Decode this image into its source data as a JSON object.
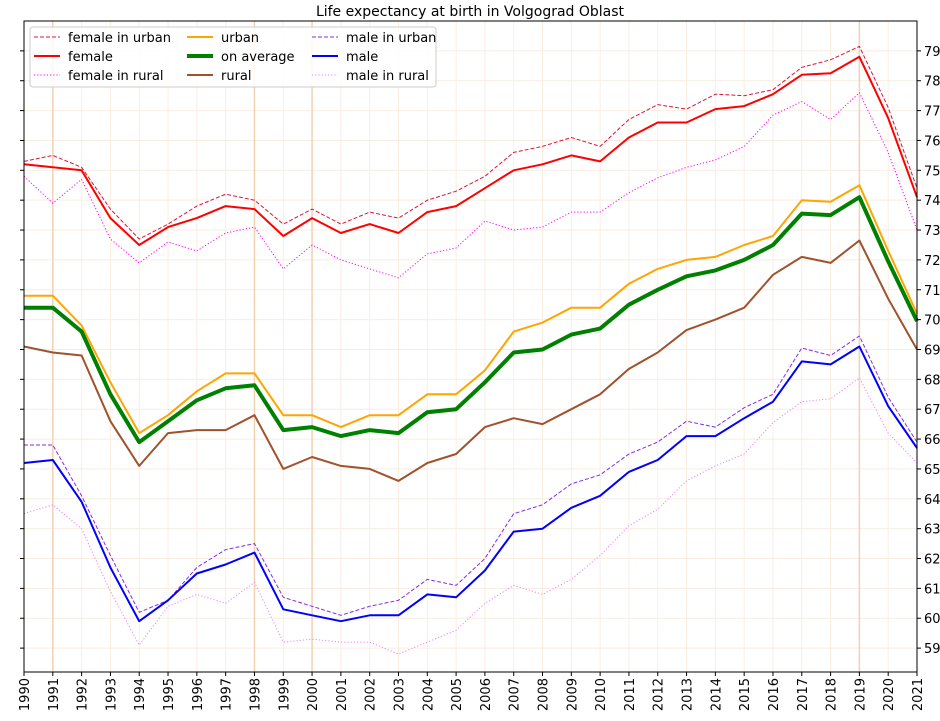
{
  "chart_data": {
    "type": "line",
    "title": "Life expectancy at birth in Volgograd Oblast",
    "xlabel": "",
    "ylabel": "",
    "xlim": [
      1990,
      2021
    ],
    "ylim": [
      58.2,
      80.0
    ],
    "grid": true,
    "legend_position": "top-left",
    "highlight_years": [
      1991,
      1998,
      2000,
      2019
    ],
    "x": [
      1990,
      1991,
      1992,
      1993,
      1994,
      1995,
      1996,
      1997,
      1998,
      1999,
      2000,
      2001,
      2002,
      2003,
      2004,
      2005,
      2006,
      2007,
      2008,
      2009,
      2010,
      2011,
      2012,
      2013,
      2014,
      2015,
      2016,
      2017,
      2018,
      2019,
      2020,
      2021
    ],
    "yticks": [
      59,
      60,
      61,
      62,
      63,
      64,
      65,
      66,
      67,
      68,
      69,
      70,
      71,
      72,
      73,
      74,
      75,
      76,
      77,
      78,
      79
    ],
    "series": [
      {
        "name": "female in urban",
        "color": "#dc143c",
        "style": "dashed",
        "width": 1,
        "values": [
          75.3,
          75.5,
          75.1,
          73.7,
          72.7,
          73.2,
          73.8,
          74.2,
          74.0,
          73.2,
          73.7,
          73.2,
          73.6,
          73.4,
          74.0,
          74.3,
          74.8,
          75.6,
          75.8,
          76.1,
          75.8,
          76.7,
          77.2,
          77.05,
          77.55,
          77.5,
          77.7,
          78.45,
          78.7,
          79.15,
          77.1,
          74.4
        ]
      },
      {
        "name": "female",
        "color": "#ff0000",
        "style": "solid",
        "width": 2,
        "values": [
          75.2,
          75.1,
          75.0,
          73.4,
          72.5,
          73.1,
          73.4,
          73.8,
          73.7,
          72.8,
          73.4,
          72.9,
          73.2,
          72.9,
          73.6,
          73.8,
          74.4,
          75.0,
          75.2,
          75.5,
          75.3,
          76.1,
          76.6,
          76.6,
          77.05,
          77.15,
          77.55,
          78.2,
          78.25,
          78.8,
          76.75,
          74.1
        ]
      },
      {
        "name": "female in rural",
        "color": "#ff00ff",
        "style": "dotted",
        "width": 1,
        "values": [
          74.8,
          73.9,
          74.7,
          72.7,
          71.9,
          72.6,
          72.3,
          72.9,
          73.1,
          71.7,
          72.5,
          72.0,
          71.7,
          71.4,
          72.2,
          72.4,
          73.3,
          73.0,
          73.1,
          73.6,
          73.6,
          74.25,
          74.75,
          75.1,
          75.35,
          75.8,
          76.85,
          77.3,
          76.7,
          77.6,
          75.6,
          73.0
        ]
      },
      {
        "name": "urban",
        "color": "#ffa500",
        "style": "solid",
        "width": 2,
        "values": [
          70.8,
          70.8,
          69.8,
          67.9,
          66.2,
          66.8,
          67.6,
          68.2,
          68.2,
          66.8,
          66.8,
          66.4,
          66.8,
          66.8,
          67.5,
          67.5,
          68.3,
          69.6,
          69.9,
          70.4,
          70.4,
          71.2,
          71.7,
          72.0,
          72.1,
          72.5,
          72.8,
          74.0,
          73.95,
          74.5,
          72.3,
          70.2
        ]
      },
      {
        "name": "on average",
        "color": "#008000",
        "style": "solid",
        "width": 4,
        "values": [
          70.4,
          70.4,
          69.6,
          67.5,
          65.9,
          66.6,
          67.3,
          67.7,
          67.8,
          66.3,
          66.4,
          66.1,
          66.3,
          66.2,
          66.9,
          67.0,
          67.9,
          68.9,
          69.0,
          69.5,
          69.7,
          70.5,
          71.0,
          71.45,
          71.65,
          72.0,
          72.5,
          73.55,
          73.5,
          74.1,
          71.95,
          69.95
        ]
      },
      {
        "name": "rural",
        "color": "#a0522d",
        "style": "solid",
        "width": 2,
        "values": [
          69.1,
          68.9,
          68.8,
          66.6,
          65.1,
          66.2,
          66.3,
          66.3,
          66.8,
          65.0,
          65.4,
          65.1,
          65.0,
          64.6,
          65.2,
          65.5,
          66.4,
          66.7,
          66.5,
          67.0,
          67.5,
          68.35,
          68.9,
          69.65,
          70.0,
          70.4,
          71.5,
          72.1,
          71.9,
          72.65,
          70.7,
          69.0
        ]
      },
      {
        "name": "male in urban",
        "color": "#8a2be2",
        "style": "dashed",
        "width": 1,
        "values": [
          65.8,
          65.8,
          64.1,
          62.1,
          60.2,
          60.6,
          61.7,
          62.3,
          62.5,
          60.7,
          60.4,
          60.1,
          60.4,
          60.6,
          61.3,
          61.1,
          62.0,
          63.5,
          63.8,
          64.5,
          64.8,
          65.5,
          65.9,
          66.6,
          66.4,
          67.05,
          67.5,
          69.05,
          68.8,
          69.45,
          67.4,
          65.9
        ]
      },
      {
        "name": "male",
        "color": "#0000ff",
        "style": "solid",
        "width": 2,
        "values": [
          65.2,
          65.3,
          63.9,
          61.7,
          59.9,
          60.6,
          61.5,
          61.8,
          62.2,
          60.3,
          60.1,
          59.9,
          60.1,
          60.1,
          60.8,
          60.7,
          61.6,
          62.9,
          63.0,
          63.7,
          64.1,
          64.9,
          65.3,
          66.1,
          66.1,
          66.7,
          67.25,
          68.6,
          68.5,
          69.1,
          67.1,
          65.7
        ]
      },
      {
        "name": "male in rural",
        "color": "#ee82ee",
        "style": "dotted",
        "width": 1,
        "values": [
          63.5,
          63.8,
          63.0,
          60.9,
          59.1,
          60.4,
          60.8,
          60.5,
          61.2,
          59.2,
          59.3,
          59.2,
          59.2,
          58.8,
          59.2,
          59.6,
          60.5,
          61.1,
          60.8,
          61.3,
          62.1,
          63.1,
          63.65,
          64.6,
          65.1,
          65.5,
          66.55,
          67.25,
          67.35,
          68.05,
          66.2,
          65.2
        ]
      }
    ],
    "legend_columns": [
      [
        0,
        1,
        2
      ],
      [
        3,
        4,
        5
      ],
      [
        6,
        7,
        8
      ]
    ]
  }
}
